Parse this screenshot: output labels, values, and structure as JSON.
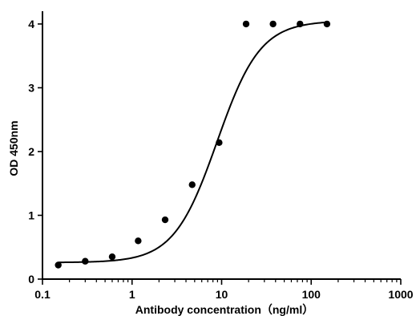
{
  "chart_data": {
    "type": "scatter",
    "title": "",
    "xlabel": "Antibody concentration（ng/ml）",
    "ylabel": "OD 450nm",
    "x_scale": "log",
    "xlim": [
      0.1,
      1000
    ],
    "ylim": [
      0,
      4.2
    ],
    "x_ticks": [
      0.1,
      1,
      10,
      100,
      1000
    ],
    "x_tick_labels": [
      "0.1",
      "1",
      "10",
      "100",
      "1000"
    ],
    "y_ticks": [
      0,
      1,
      2,
      3,
      4
    ],
    "y_tick_labels": [
      "0",
      "1",
      "2",
      "3",
      "4"
    ],
    "grid": false,
    "legend": "none",
    "series": [
      {
        "x": [
          0.15,
          0.3,
          0.6,
          1.17,
          2.34,
          4.69,
          9.38,
          18.75,
          37.5,
          75,
          150
        ],
        "y": [
          0.22,
          0.28,
          0.35,
          0.6,
          0.93,
          1.48,
          2.14,
          4.0,
          4.0,
          4.0,
          4.0
        ]
      }
    ],
    "fit_curve": {
      "model": "4PL",
      "bottom": 0.26,
      "top": 4.05,
      "ec50": 8.9,
      "hill": 1.8,
      "x_range": [
        0.15,
        150
      ]
    }
  }
}
